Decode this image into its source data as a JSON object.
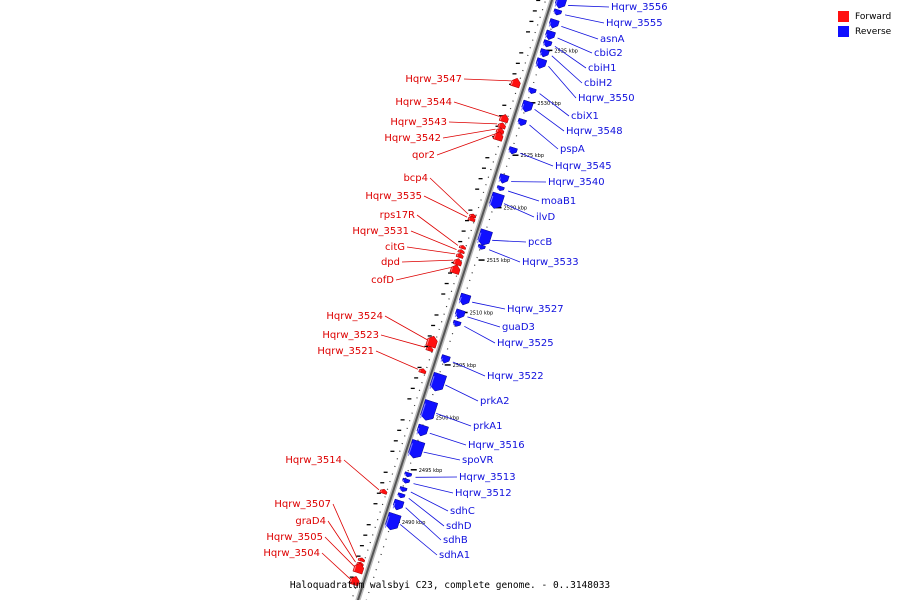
{
  "caption": "Haloquadratum walsbyi C23, complete genome. - 0..3148033",
  "legend": [
    {
      "label": "Forward",
      "color": "#ff1010"
    },
    {
      "label": "Reverse",
      "color": "#1010ff"
    }
  ],
  "strand_colors": {
    "forward": "#ff1010",
    "reverse": "#1010ff",
    "line": "#dd0000",
    "line_rev": "#1010dd"
  },
  "ticks": [
    {
      "kbp": 2535,
      "label": "2535 kbp"
    },
    {
      "kbp": 2530,
      "label": "2530 kbp"
    },
    {
      "kbp": 2525,
      "label": "2525 kbp"
    },
    {
      "kbp": 2520,
      "label": "2520 kbp"
    },
    {
      "kbp": 2515,
      "label": "2515 kbp"
    },
    {
      "kbp": 2510,
      "label": "2510 kbp"
    },
    {
      "kbp": 2505,
      "label": "2505 kbp"
    },
    {
      "kbp": 2500,
      "label": "2500 kbp"
    },
    {
      "kbp": 2495,
      "label": "2495 kbp"
    },
    {
      "kbp": 2490,
      "label": "2490 kbp"
    }
  ],
  "forward_genes": [
    {
      "name": "Hqrw_3547",
      "pos": 2531.3,
      "len": 0.8
    },
    {
      "name": "Hqrw_3544",
      "pos": 2527.9,
      "len": 0.7
    },
    {
      "name": "Hqrw_3543",
      "pos": 2527.2,
      "len": 0.5
    },
    {
      "name": "Hqrw_3542",
      "pos": 2526.7,
      "len": 0.5
    },
    {
      "name": "qor2",
      "pos": 2526.2,
      "len": 0.8
    },
    {
      "name": "bcp4",
      "pos": 2518.6,
      "len": 0.3
    },
    {
      "name": "Hqrw_3535",
      "pos": 2518.3,
      "len": 0.4
    },
    {
      "name": "rps17R",
      "pos": 2515.6,
      "len": 0.3
    },
    {
      "name": "Hqrw_3531",
      "pos": 2515.2,
      "len": 0.3
    },
    {
      "name": "citG",
      "pos": 2514.8,
      "len": 0.4
    },
    {
      "name": "dpd",
      "pos": 2514.2,
      "len": 0.6
    },
    {
      "name": "cofD",
      "pos": 2513.5,
      "len": 0.8
    },
    {
      "name": "Hqrw_3524",
      "pos": 2506.6,
      "len": 1.0
    },
    {
      "name": "Hqrw_3523",
      "pos": 2505.9,
      "len": 0.4
    },
    {
      "name": "Hqrw_3521",
      "pos": 2503.8,
      "len": 0.4
    },
    {
      "name": "Hqrw_3514",
      "pos": 2492.3,
      "len": 0.4
    },
    {
      "name": "Hqrw_3507",
      "pos": 2485.8,
      "len": 0.3
    },
    {
      "name": "graD4",
      "pos": 2485.4,
      "len": 0.3
    },
    {
      "name": "Hqrw_3505",
      "pos": 2485.0,
      "len": 0.9
    },
    {
      "name": "Hqrw_3504",
      "pos": 2483.8,
      "len": 0.8
    }
  ],
  "reverse_genes": [
    {
      "name": "Hqrw_3556",
      "pos": 2539.4,
      "len": 1.0
    },
    {
      "name": "Hqrw_3555",
      "pos": 2538.5,
      "len": 0.5
    },
    {
      "name": "asnA",
      "pos": 2537.4,
      "len": 0.8
    },
    {
      "name": "cbiG2",
      "pos": 2536.3,
      "len": 0.8
    },
    {
      "name": "cbiH1",
      "pos": 2535.5,
      "len": 0.6
    },
    {
      "name": "cbiH2",
      "pos": 2534.6,
      "len": 0.7
    },
    {
      "name": "Hqrw_3550",
      "pos": 2533.6,
      "len": 0.9
    },
    {
      "name": "cbiX1",
      "pos": 2531.0,
      "len": 0.5
    },
    {
      "name": "Hqrw_3548",
      "pos": 2529.5,
      "len": 1.0
    },
    {
      "name": "pspA",
      "pos": 2528.0,
      "len": 0.6
    },
    {
      "name": "Hqrw_3545",
      "pos": 2525.3,
      "len": 0.6
    },
    {
      "name": "Hqrw_3540",
      "pos": 2522.6,
      "len": 0.8
    },
    {
      "name": "moaB1",
      "pos": 2521.7,
      "len": 0.4
    },
    {
      "name": "ilvD",
      "pos": 2520.5,
      "len": 1.4
    },
    {
      "name": "pccB",
      "pos": 2517.0,
      "len": 1.4
    },
    {
      "name": "Hqrw_3533",
      "pos": 2516.1,
      "len": 0.4
    },
    {
      "name": "Hqrw_3527",
      "pos": 2511.1,
      "len": 1.0
    },
    {
      "name": "guaD3",
      "pos": 2509.7,
      "len": 0.8
    },
    {
      "name": "Hqrw_3525",
      "pos": 2508.8,
      "len": 0.5
    },
    {
      "name": "Hqrw_3522",
      "pos": 2505.4,
      "len": 0.7
    },
    {
      "name": "prkA2",
      "pos": 2503.2,
      "len": 1.6
    },
    {
      "name": "prkA1",
      "pos": 2500.5,
      "len": 1.8
    },
    {
      "name": "Hqrw_3516",
      "pos": 2498.6,
      "len": 1.0
    },
    {
      "name": "spoVR",
      "pos": 2496.8,
      "len": 1.6
    },
    {
      "name": "Hqrw_3513",
      "pos": 2494.4,
      "len": 0.4
    },
    {
      "name": "Hqrw_3512",
      "pos": 2493.8,
      "len": 0.4
    },
    {
      "name": "sdhC",
      "pos": 2493.0,
      "len": 0.4
    },
    {
      "name": "sdhD",
      "pos": 2492.4,
      "len": 0.4
    },
    {
      "name": "sdhB",
      "pos": 2491.5,
      "len": 0.9
    },
    {
      "name": "sdhA1",
      "pos": 2489.9,
      "len": 1.5
    }
  ]
}
